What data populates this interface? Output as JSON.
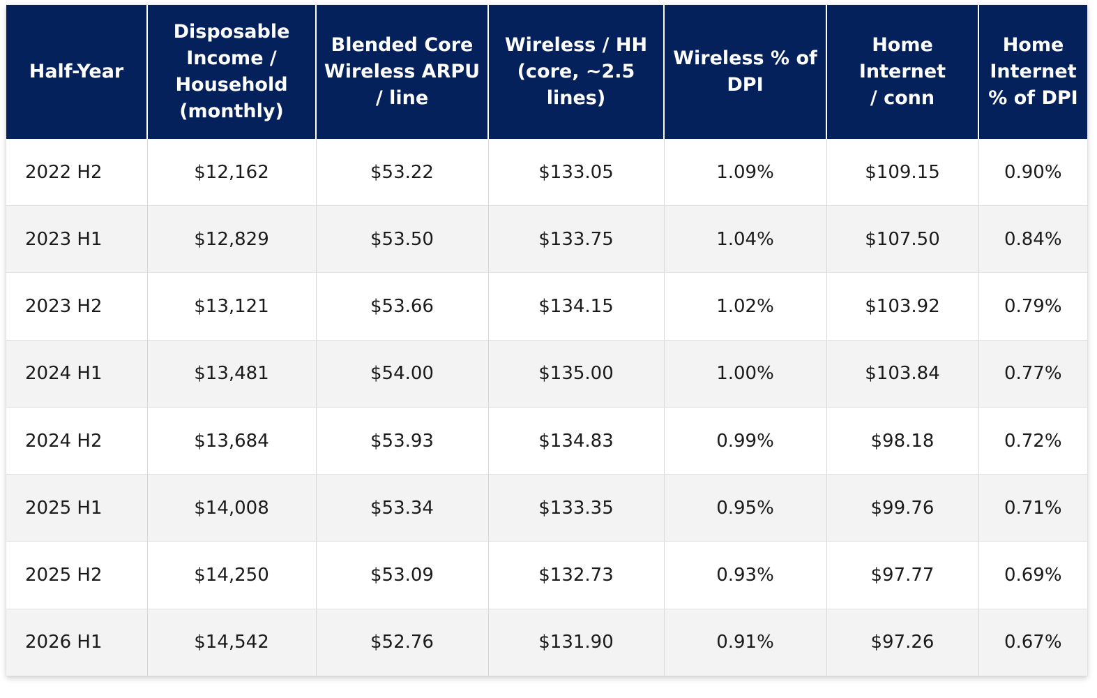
{
  "chart_data": {
    "type": "table",
    "columns": [
      "Half-Year",
      "Disposable\nIncome /\nHousehold\n(monthly)",
      "Blended Core\nWireless ARPU\n/ line",
      "Wireless / HH\n(core, ~2.5\nlines)",
      "Wireless % of\nDPI",
      "Home Internet\n/ conn",
      "Home\nInternet\n% of DPI"
    ],
    "rows": [
      [
        "2022 H2",
        "$12,162",
        "$53.22",
        "$133.05",
        "1.09%",
        "$109.15",
        "0.90%"
      ],
      [
        "2023 H1",
        "$12,829",
        "$53.50",
        "$133.75",
        "1.04%",
        "$107.50",
        "0.84%"
      ],
      [
        "2023 H2",
        "$13,121",
        "$53.66",
        "$134.15",
        "1.02%",
        "$103.92",
        "0.79%"
      ],
      [
        "2024 H1",
        "$13,481",
        "$54.00",
        "$135.00",
        "1.00%",
        "$103.84",
        "0.77%"
      ],
      [
        "2024 H2",
        "$13,684",
        "$53.93",
        "$134.83",
        "0.99%",
        "$98.18",
        "0.72%"
      ],
      [
        "2025 H1",
        "$14,008",
        "$53.34",
        "$133.35",
        "0.95%",
        "$99.76",
        "0.71%"
      ],
      [
        "2025 H2",
        "$14,250",
        "$53.09",
        "$132.73",
        "0.93%",
        "$97.77",
        "0.69%"
      ],
      [
        "2026 H1",
        "$14,542",
        "$52.76",
        "$131.90",
        "0.91%",
        "$97.26",
        "0.67%"
      ]
    ],
    "header_color": "#04215b",
    "header_text_color": "#ffffff",
    "stripe_color": "#f3f3f3"
  }
}
